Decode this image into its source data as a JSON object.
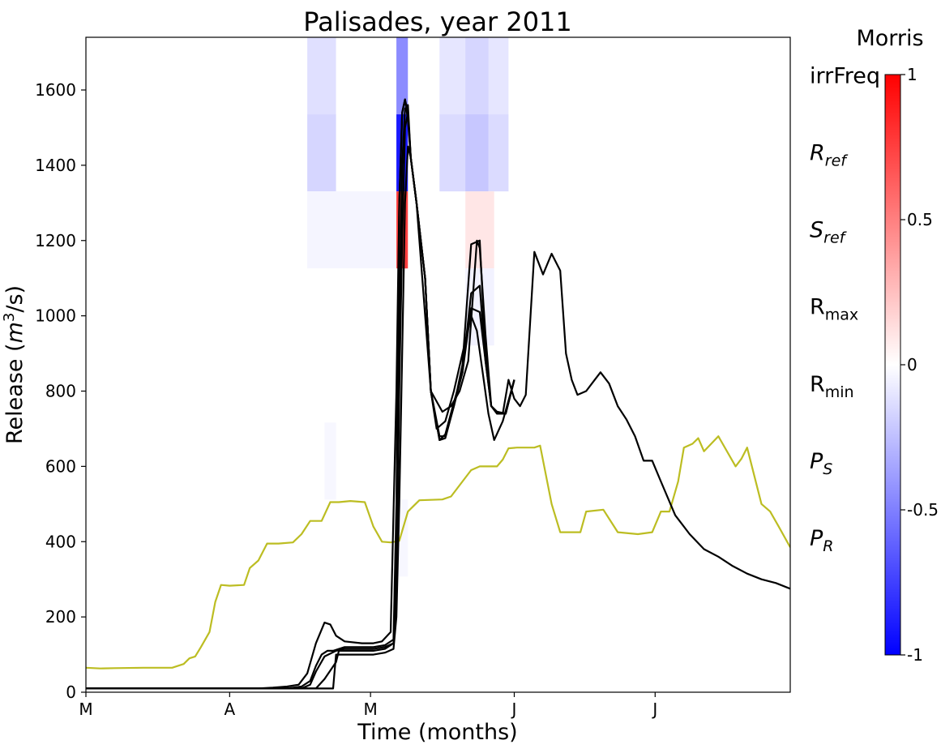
{
  "chart_data": {
    "type": "line",
    "title": "Palisades, year 2011",
    "xlabel": "Time (months)",
    "ylabel_base": "Release (",
    "ylabel_m": "m",
    "ylabel_sup": "3",
    "ylabel_tail": "/s)",
    "xlim": [
      0,
      245
    ],
    "ylim": [
      0,
      1740
    ],
    "x_ticks": [
      {
        "label": "M",
        "x": 0
      },
      {
        "label": "A",
        "x": 50
      },
      {
        "label": "M",
        "x": 99
      },
      {
        "label": "J",
        "x": 149
      },
      {
        "label": "J",
        "x": 198
      }
    ],
    "y_ticks": [
      0,
      200,
      400,
      600,
      800,
      1000,
      1200,
      1400,
      1600
    ],
    "y_tick_labels": [
      "0",
      "200",
      "400",
      "600",
      "800",
      "1000",
      "1200",
      "1400",
      "1600"
    ],
    "grid": false,
    "colorbar": {
      "title": "Morris",
      "range": [
        -1,
        1
      ],
      "ticks": [
        1,
        0.5,
        0,
        -0.5,
        -1
      ],
      "tick_labels": [
        "1",
        "0.5",
        "0",
        "-0.5",
        "-1"
      ],
      "low_color": "#0000ff",
      "mid_color": "#ffffff",
      "high_color": "#ff0000"
    },
    "parameter_rows": [
      {
        "main": "irrFreq",
        "sub": "",
        "italic": false
      },
      {
        "main": "R",
        "sub": "ref",
        "italic": true
      },
      {
        "main": "S",
        "sub": "ref",
        "italic": true
      },
      {
        "main": "R",
        "sub": "max",
        "italic": false
      },
      {
        "main": "R",
        "sub": "min",
        "italic": false
      },
      {
        "main": "P",
        "sub": "S",
        "italic": true
      },
      {
        "main": "P",
        "sub": "R",
        "italic": true
      }
    ],
    "heatmap": [
      {
        "row": 0,
        "x0": 77,
        "x1": 87,
        "value": -0.12
      },
      {
        "row": 0,
        "x0": 108,
        "x1": 112,
        "value": -0.45
      },
      {
        "row": 0,
        "x0": 123,
        "x1": 147,
        "value": -0.1
      },
      {
        "row": 0,
        "x0": 132,
        "x1": 140,
        "value": -0.16
      },
      {
        "row": 1,
        "x0": 77,
        "x1": 87,
        "value": -0.16
      },
      {
        "row": 1,
        "x0": 108,
        "x1": 112,
        "value": -0.9
      },
      {
        "row": 1,
        "x0": 123,
        "x1": 147,
        "value": -0.14
      },
      {
        "row": 1,
        "x0": 132,
        "x1": 140,
        "value": -0.22
      },
      {
        "row": 2,
        "x0": 77,
        "x1": 108,
        "value": -0.04
      },
      {
        "row": 2,
        "x0": 108,
        "x1": 112,
        "value": 0.75
      },
      {
        "row": 2,
        "x0": 132,
        "x1": 142,
        "value": 0.1
      },
      {
        "row": 3,
        "x0": 132,
        "x1": 142,
        "value": -0.05
      },
      {
        "row": 5,
        "x0": 83,
        "x1": 87,
        "value": -0.03
      },
      {
        "row": 6,
        "x0": 108,
        "x1": 112,
        "value": -0.03
      }
    ],
    "series": [
      {
        "color": "#bcbd22",
        "x": [
          0,
          5,
          10,
          20,
          30,
          34,
          36,
          38,
          40,
          43,
          45,
          47,
          50,
          55,
          57,
          60,
          63,
          67,
          72,
          75,
          78,
          82,
          85,
          88,
          92,
          97,
          100,
          103,
          106,
          109,
          112,
          116,
          124,
          127,
          131,
          134,
          137,
          143,
          145,
          147,
          150,
          156,
          158,
          162,
          165,
          172,
          174,
          180,
          185,
          192,
          197,
          200,
          203,
          206,
          208,
          211,
          213,
          215,
          220,
          226,
          228,
          230,
          235,
          238,
          241,
          245
        ],
        "y": [
          65,
          63,
          64,
          65,
          65,
          75,
          90,
          95,
          120,
          160,
          240,
          285,
          283,
          285,
          330,
          350,
          395,
          395,
          398,
          420,
          455,
          455,
          505,
          505,
          508,
          505,
          440,
          400,
          398,
          402,
          480,
          510,
          512,
          520,
          560,
          590,
          600,
          600,
          618,
          648,
          650,
          650,
          655,
          500,
          425,
          425,
          480,
          485,
          425,
          420,
          425,
          480,
          480,
          560,
          650,
          660,
          675,
          640,
          680,
          600,
          620,
          650,
          500,
          480,
          440,
          385
        ]
      },
      {
        "color": "#000000",
        "x": [
          0,
          60,
          65,
          70,
          74,
          77,
          80,
          83,
          85,
          87,
          90,
          96,
          100,
          103,
          106,
          108,
          109,
          110,
          111,
          112,
          113,
          115,
          117,
          120,
          124,
          127,
          130,
          133,
          136,
          137,
          139,
          141,
          143,
          145,
          147,
          149,
          151,
          153,
          156,
          159,
          162,
          165,
          167,
          169,
          171,
          174,
          177,
          179,
          182,
          185,
          188,
          191,
          194,
          197,
          200,
          205,
          210,
          215,
          220,
          225,
          230,
          235,
          240,
          245
        ],
        "y": [
          10,
          10,
          12,
          15,
          20,
          50,
          130,
          185,
          180,
          150,
          135,
          130,
          130,
          135,
          160,
          800,
          1300,
          1540,
          1575,
          1520,
          1420,
          1300,
          1100,
          800,
          745,
          760,
          800,
          880,
          1200,
          1180,
          950,
          760,
          745,
          740,
          830,
          780,
          760,
          790,
          1170,
          1110,
          1165,
          1120,
          900,
          830,
          790,
          800,
          830,
          850,
          820,
          760,
          725,
          680,
          615,
          615,
          560,
          470,
          420,
          380,
          360,
          335,
          315,
          300,
          290,
          275
        ]
      },
      {
        "color": "#000000",
        "x": [
          0,
          70,
          75,
          78,
          80,
          82,
          84,
          86,
          90,
          100,
          104,
          107,
          108,
          109,
          110,
          111,
          112,
          113,
          115,
          118,
          120,
          123,
          125,
          128,
          131,
          134,
          137,
          139,
          141,
          143,
          146,
          149
        ],
        "y": [
          10,
          10,
          15,
          30,
          70,
          100,
          110,
          110,
          120,
          120,
          125,
          140,
          500,
          1300,
          1540,
          1575,
          1540,
          1420,
          1300,
          1100,
          800,
          670,
          675,
          760,
          870,
          1190,
          1200,
          900,
          760,
          745,
          740,
          830
        ]
      },
      {
        "color": "#000000",
        "x": [
          0,
          75,
          78,
          80,
          83,
          87,
          90,
          100,
          104,
          107,
          108,
          109,
          110,
          111,
          112,
          113,
          115,
          118,
          120,
          123,
          125,
          128,
          131,
          134,
          137,
          139,
          141,
          143,
          146,
          149
        ],
        "y": [
          10,
          10,
          20,
          55,
          95,
          110,
          115,
          115,
          120,
          130,
          300,
          1000,
          1400,
          1550,
          1560,
          1420,
          1300,
          1100,
          800,
          680,
          680,
          760,
          850,
          1060,
          1080,
          880,
          760,
          745,
          740,
          830
        ]
      },
      {
        "color": "#000000",
        "x": [
          0,
          80,
          83,
          87,
          88,
          90,
          100,
          104,
          107,
          108,
          109,
          110,
          111,
          112,
          113,
          115,
          118,
          120,
          123,
          125,
          128,
          131,
          134,
          137,
          139,
          141,
          143,
          146,
          149
        ],
        "y": [
          10,
          10,
          35,
          80,
          110,
          110,
          110,
          115,
          130,
          250,
          800,
          1200,
          1500,
          1540,
          1420,
          1300,
          1100,
          800,
          670,
          685,
          770,
          850,
          1020,
          1010,
          880,
          760,
          740,
          740,
          830
        ]
      },
      {
        "color": "#000000",
        "x": [
          0,
          86,
          87,
          90,
          100,
          104,
          107,
          108,
          109,
          110,
          111,
          112,
          113,
          115,
          118,
          120,
          122,
          125,
          128,
          131,
          134,
          136,
          138,
          140,
          142,
          145,
          149
        ],
        "y": [
          10,
          10,
          100,
          100,
          100,
          105,
          115,
          200,
          500,
          900,
          1300,
          1450,
          1420,
          1300,
          1100,
          800,
          700,
          720,
          800,
          900,
          1000,
          960,
          850,
          740,
          670,
          720,
          830
        ]
      }
    ]
  }
}
